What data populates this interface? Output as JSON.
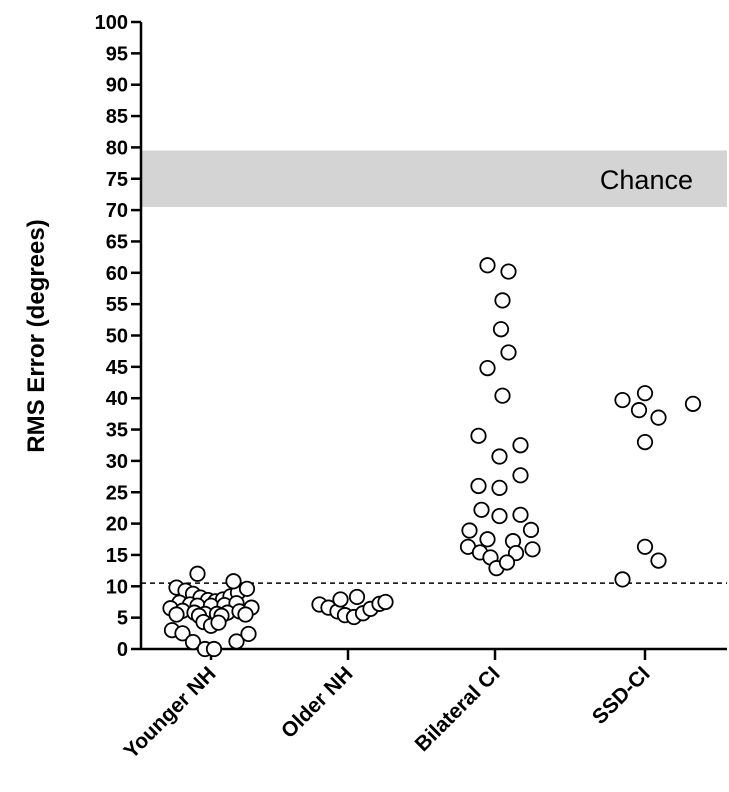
{
  "chart_data": {
    "type": "scatter",
    "ylabel": "RMS Error (degrees)",
    "ylim": [
      0,
      100
    ],
    "y_ticks": [
      0,
      5,
      10,
      15,
      20,
      25,
      30,
      35,
      40,
      45,
      50,
      55,
      60,
      65,
      70,
      75,
      80,
      85,
      90,
      95,
      100
    ],
    "categories": [
      "Younger NH",
      "Older NH",
      "Bilateral CI",
      "SSD-CI"
    ],
    "reference_line": {
      "y": 10.5,
      "style": "dashed"
    },
    "band": {
      "y_from": 70.5,
      "y_to": 79.5,
      "label": "Chance",
      "color": "#d4d4d4"
    },
    "series": [
      {
        "category": "Younger NH",
        "points": [
          {
            "dx": -0.23,
            "y": 9.8
          },
          {
            "dx": -0.17,
            "y": 9.3
          },
          {
            "dx": -0.12,
            "y": 8.8
          },
          {
            "dx": -0.07,
            "y": 8.2
          },
          {
            "dx": -0.02,
            "y": 7.8
          },
          {
            "dx": 0.03,
            "y": 7.6
          },
          {
            "dx": 0.08,
            "y": 7.9
          },
          {
            "dx": 0.13,
            "y": 8.4
          },
          {
            "dx": 0.18,
            "y": 9.0
          },
          {
            "dx": 0.24,
            "y": 9.6
          },
          {
            "dx": -0.21,
            "y": 7.4
          },
          {
            "dx": -0.14,
            "y": 7.1
          },
          {
            "dx": -0.09,
            "y": 6.9
          },
          {
            "dx": 0.0,
            "y": 6.9
          },
          {
            "dx": 0.09,
            "y": 7.0
          },
          {
            "dx": 0.17,
            "y": 7.3
          },
          {
            "dx": -0.27,
            "y": 6.5
          },
          {
            "dx": -0.19,
            "y": 6.1
          },
          {
            "dx": -0.11,
            "y": 5.8
          },
          {
            "dx": -0.04,
            "y": 5.6
          },
          {
            "dx": 0.04,
            "y": 5.6
          },
          {
            "dx": 0.11,
            "y": 5.8
          },
          {
            "dx": 0.19,
            "y": 6.0
          },
          {
            "dx": 0.27,
            "y": 6.6
          },
          {
            "dx": -0.23,
            "y": 5.5
          },
          {
            "dx": -0.08,
            "y": 5.3
          },
          {
            "dx": 0.07,
            "y": 5.3
          },
          {
            "dx": 0.23,
            "y": 5.5
          },
          {
            "dx": -0.05,
            "y": 4.3
          },
          {
            "dx": 0.0,
            "y": 3.7
          },
          {
            "dx": 0.05,
            "y": 4.2
          },
          {
            "dx": -0.26,
            "y": 3.0
          },
          {
            "dx": -0.19,
            "y": 2.5
          },
          {
            "dx": 0.17,
            "y": 1.2
          },
          {
            "dx": 0.25,
            "y": 2.4
          },
          {
            "dx": -0.12,
            "y": 1.1
          },
          {
            "dx": -0.04,
            "y": 0.0
          },
          {
            "dx": 0.02,
            "y": 0.0
          },
          {
            "dx": -0.09,
            "y": 12.0
          },
          {
            "dx": 0.15,
            "y": 10.8
          }
        ]
      },
      {
        "category": "Older NH",
        "points": [
          {
            "dx": -0.19,
            "y": 7.1
          },
          {
            "dx": -0.13,
            "y": 6.6
          },
          {
            "dx": -0.07,
            "y": 6.0
          },
          {
            "dx": -0.02,
            "y": 5.4
          },
          {
            "dx": 0.04,
            "y": 5.1
          },
          {
            "dx": 0.1,
            "y": 5.7
          },
          {
            "dx": 0.15,
            "y": 6.4
          },
          {
            "dx": 0.21,
            "y": 7.2
          },
          {
            "dx": -0.05,
            "y": 7.9
          },
          {
            "dx": 0.06,
            "y": 8.3
          },
          {
            "dx": 0.25,
            "y": 7.5
          }
        ]
      },
      {
        "category": "Bilateral CI",
        "points": [
          {
            "dx": -0.05,
            "y": 61.2
          },
          {
            "dx": 0.09,
            "y": 60.2
          },
          {
            "dx": 0.05,
            "y": 55.6
          },
          {
            "dx": 0.04,
            "y": 51.0
          },
          {
            "dx": 0.09,
            "y": 47.3
          },
          {
            "dx": -0.05,
            "y": 44.8
          },
          {
            "dx": 0.05,
            "y": 40.4
          },
          {
            "dx": -0.11,
            "y": 34.0
          },
          {
            "dx": 0.17,
            "y": 32.5
          },
          {
            "dx": 0.03,
            "y": 30.7
          },
          {
            "dx": 0.17,
            "y": 27.7
          },
          {
            "dx": -0.11,
            "y": 26.0
          },
          {
            "dx": 0.03,
            "y": 25.7
          },
          {
            "dx": -0.09,
            "y": 22.2
          },
          {
            "dx": 0.03,
            "y": 21.2
          },
          {
            "dx": 0.17,
            "y": 21.4
          },
          {
            "dx": -0.17,
            "y": 18.9
          },
          {
            "dx": 0.24,
            "y": 19.0
          },
          {
            "dx": -0.05,
            "y": 17.5
          },
          {
            "dx": 0.12,
            "y": 17.2
          },
          {
            "dx": -0.18,
            "y": 16.3
          },
          {
            "dx": -0.1,
            "y": 15.4
          },
          {
            "dx": -0.03,
            "y": 14.6
          },
          {
            "dx": 0.14,
            "y": 15.3
          },
          {
            "dx": 0.25,
            "y": 15.9
          },
          {
            "dx": 0.01,
            "y": 12.9
          },
          {
            "dx": 0.08,
            "y": 13.8
          }
        ]
      },
      {
        "category": "SSD-CI",
        "points": [
          {
            "dx": -0.15,
            "y": 39.7
          },
          {
            "dx": 0.0,
            "y": 40.8
          },
          {
            "dx": -0.04,
            "y": 38.1
          },
          {
            "dx": 0.09,
            "y": 36.9
          },
          {
            "dx": 0.32,
            "y": 39.1
          },
          {
            "dx": 0.0,
            "y": 33.0
          },
          {
            "dx": 0.0,
            "y": 16.3
          },
          {
            "dx": 0.09,
            "y": 14.1
          },
          {
            "dx": -0.15,
            "y": 11.1
          }
        ]
      }
    ]
  }
}
